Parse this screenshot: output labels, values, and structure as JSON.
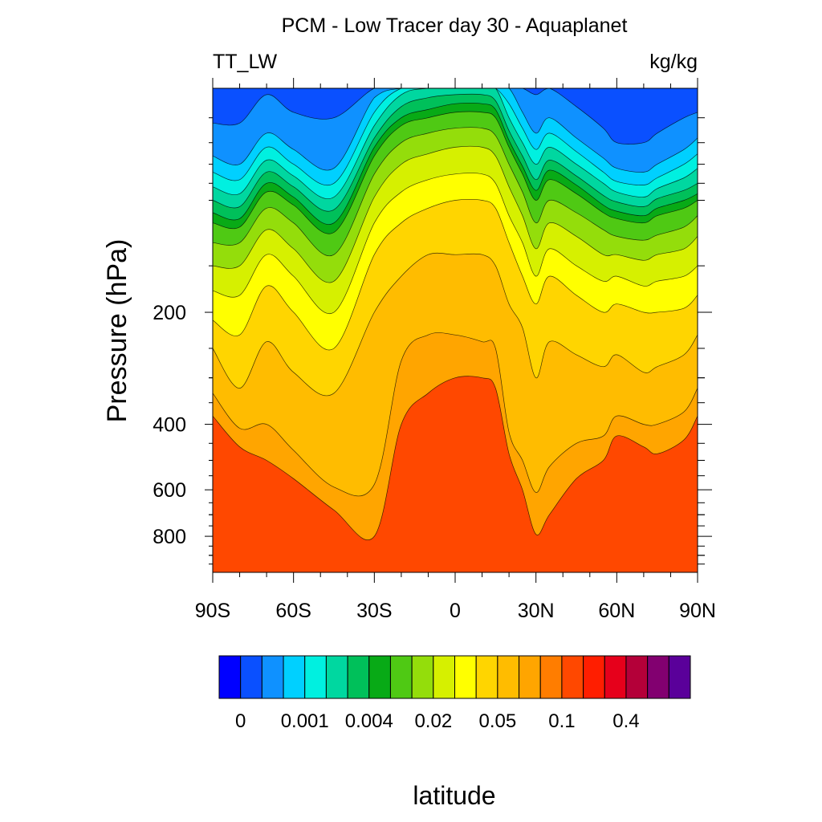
{
  "chart_data": {
    "type": "heatmap",
    "title": "PCM - Low Tracer day 30 - Aquaplanet",
    "left_label": "TT_LW",
    "right_label": "kg/kg",
    "ylabel": "Pressure (hPa)",
    "xlabel": "latitude",
    "x_ticks": [
      "90S",
      "60S",
      "30S",
      "0",
      "30N",
      "60N",
      "90N"
    ],
    "x_tick_values": [
      -90,
      -60,
      -30,
      0,
      30,
      60,
      90
    ],
    "y_ticks": [
      "200",
      "400",
      "600",
      "800"
    ],
    "y_tick_values": [
      200,
      400,
      600,
      800
    ],
    "xlim": [
      -90,
      90
    ],
    "ylim": [
      1000,
      50
    ],
    "y_scale": "log",
    "colorbar": {
      "tick_labels": [
        "0",
        "0.001",
        "0.004",
        "0.02",
        "0.05",
        "0.1",
        "0.4"
      ],
      "colors": [
        "#0000ff",
        "#0a50ff",
        "#0f91ff",
        "#00d0ff",
        "#00f0e0",
        "#00d7a0",
        "#00c05a",
        "#08aa16",
        "#4fc914",
        "#94dd0b",
        "#d6f000",
        "#ffff00",
        "#ffd500",
        "#ffbc00",
        "#ffa500",
        "#ff7d00",
        "#ff4800",
        "#ff1e00",
        "#e6001b",
        "#b40039",
        "#820070",
        "#5a009a"
      ]
    },
    "contour_levels": [
      {
        "color": "#ff4800",
        "pressure": [
          380,
          460,
          500,
          560,
          680,
          800,
          400,
          330,
          300,
          300,
          320,
          480,
          600,
          790,
          700,
          560,
          500,
          430,
          460,
          480,
          440,
          380
        ]
      },
      {
        "color": "#ffa500",
        "pressure": [
          330,
          410,
          400,
          470,
          590,
          580,
          270,
          230,
          230,
          240,
          250,
          420,
          500,
          610,
          520,
          450,
          430,
          380,
          400,
          400,
          370,
          320
        ]
      },
      {
        "color": "#ffbc00",
        "pressure": [
          250,
          320,
          240,
          290,
          330,
          200,
          160,
          140,
          140,
          140,
          150,
          190,
          220,
          300,
          240,
          260,
          280,
          260,
          290,
          280,
          260,
          230
        ]
      },
      {
        "color": "#ffd500",
        "pressure": [
          210,
          230,
          170,
          200,
          250,
          140,
          115,
          105,
          100,
          100,
          105,
          130,
          160,
          190,
          160,
          180,
          200,
          190,
          200,
          200,
          195,
          180
        ]
      },
      {
        "color": "#ffff00",
        "pressure": [
          175,
          180,
          140,
          160,
          200,
          115,
          95,
          88,
          85,
          85,
          90,
          110,
          130,
          160,
          135,
          150,
          165,
          160,
          170,
          165,
          160,
          150
        ]
      },
      {
        "color": "#d6f000",
        "pressure": [
          150,
          150,
          120,
          135,
          165,
          98,
          80,
          75,
          72,
          72,
          76,
          92,
          110,
          135,
          115,
          125,
          140,
          140,
          145,
          140,
          135,
          125
        ]
      },
      {
        "color": "#94dd0b",
        "pressure": [
          130,
          130,
          105,
          115,
          140,
          85,
          70,
          66,
          64,
          64,
          67,
          80,
          95,
          115,
          100,
          108,
          120,
          125,
          128,
          124,
          118,
          110
        ]
      },
      {
        "color": "#4fc914",
        "pressure": [
          115,
          118,
          95,
          103,
          122,
          76,
          63,
          60,
          58,
          58,
          60,
          72,
          85,
          100,
          88,
          96,
          108,
          112,
          115,
          110,
          105,
          100
        ]
      },
      {
        "color": "#08aa16",
        "pressure": [
          108,
          112,
          90,
          98,
          115,
          72,
          60,
          57,
          55,
          55,
          57,
          69,
          81,
          94,
          83,
          91,
          103,
          107,
          110,
          105,
          100,
          96
        ]
      },
      {
        "color": "#00c05a",
        "pressure": [
          100,
          104,
          84,
          92,
          106,
          68,
          56,
          53,
          52,
          52,
          54,
          65,
          76,
          88,
          78,
          86,
          97,
          101,
          104,
          99,
          94,
          90
        ]
      },
      {
        "color": "#00d7a0",
        "pressure": [
          92,
          96,
          78,
          86,
          98,
          63,
          52,
          49,
          48,
          48,
          50,
          60,
          70,
          80,
          72,
          80,
          90,
          95,
          98,
          93,
          87,
          82
        ]
      },
      {
        "color": "#00f0e0",
        "pressure": [
          84,
          88,
          72,
          80,
          90,
          58,
          48,
          45,
          44,
          44,
          46,
          55,
          64,
          73,
          66,
          74,
          84,
          89,
          91,
          87,
          80,
          75
        ]
      },
      {
        "color": "#00d0ff",
        "pressure": [
          76,
          80,
          66,
          73,
          82,
          53,
          44,
          41,
          40,
          40,
          42,
          50,
          58,
          66,
          60,
          68,
          77,
          82,
          84,
          80,
          73,
          68
        ]
      },
      {
        "color": "#0f91ff",
        "pressure": [
          62,
          62,
          52,
          58,
          60,
          44,
          36,
          33,
          31,
          31,
          33,
          38,
          45,
          52,
          50,
          56,
          64,
          70,
          70,
          66,
          60,
          58
        ]
      },
      {
        "color": "#0a50ff",
        "pressure": [
          40,
          40,
          40,
          40,
          40,
          40,
          40,
          40,
          40,
          40,
          40,
          40,
          40,
          40,
          40,
          40,
          40,
          40,
          40,
          40,
          40,
          40
        ]
      }
    ],
    "level_latitudes": [
      -90,
      -80,
      -70,
      -60,
      -45,
      -30,
      -20,
      -10,
      0,
      10,
      15,
      20,
      25,
      30,
      35,
      45,
      55,
      60,
      70,
      75,
      85,
      90
    ]
  }
}
